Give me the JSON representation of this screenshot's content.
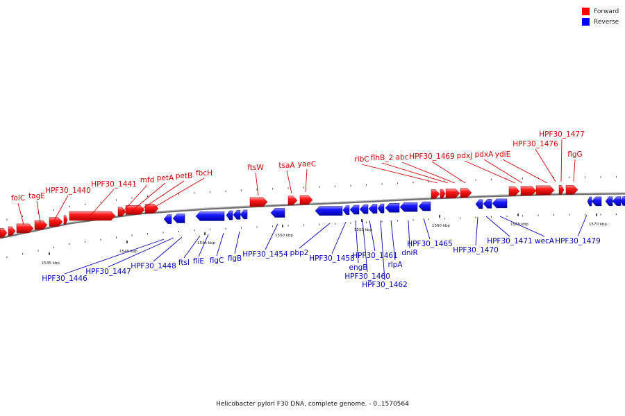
{
  "caption": "Helicobacter pylori F30 DNA, complete genome. - 0..1570564",
  "legend": [
    {
      "label": "Forward",
      "color": "#ff0000"
    },
    {
      "label": "Reverse",
      "color": "#0000ff"
    }
  ],
  "scale_ticks": [
    "1535 kbp",
    "1540 kbp",
    "1545 kbp",
    "1550 kbp",
    "1555 kbp",
    "1560 kbp",
    "1565 kbp",
    "1570 kbp"
  ],
  "forward_genes": [
    "folC",
    "tagE",
    "HPF30_1440",
    "HPF30_1441",
    "mfd",
    "petA",
    "petB",
    "fbcH",
    "ftsW",
    "tsaA",
    "yaeC",
    "ribC",
    "flhB_2",
    "abc",
    "HPF30_1469",
    "pdxJ",
    "pdxA",
    "ydiE",
    "HPF30_1476",
    "HPF30_1477",
    "flgG"
  ],
  "reverse_genes": [
    "HPF30_1446",
    "HPF30_1447",
    "HPF30_1448",
    "ftsI",
    "fliE",
    "flgC",
    "flgB",
    "HPF30_1454",
    "pbp2",
    "HPF30_1458",
    "engB",
    "HPF30_1460",
    "HPF30_1461",
    "HPF30_1462",
    "rlpA",
    "dniR",
    "HPF30_1465",
    "HPF30_1470",
    "HPF30_1471",
    "wecA",
    "HPF30_1479"
  ]
}
